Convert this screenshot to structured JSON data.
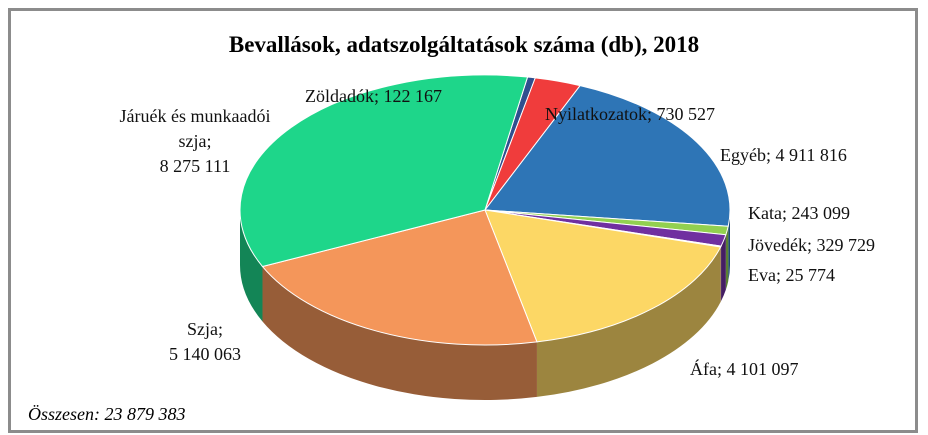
{
  "chart_data": {
    "type": "pie3d",
    "title": "Bevallások, adatszolgáltatások száma (db), 2018",
    "label_separator": ";",
    "categories": [
      "Zöldadók",
      "Nyilatkozatok",
      "Egyéb",
      "Kata",
      "Jövedék",
      "Eva",
      "Áfa",
      "Szja",
      "Járuék és munkaadói szja"
    ],
    "values": [
      122167,
      730527,
      4911816,
      243099,
      329729,
      25774,
      4101097,
      5140063,
      8275111
    ],
    "value_labels": [
      "122 167",
      "730 527",
      "4 911 816",
      "243 099",
      "329 729",
      "25 774",
      "4 101 097",
      "5 140 063",
      "8 275 111"
    ],
    "colors": [
      "#2f4f8f",
      "#f03c3c",
      "#2e75b6",
      "#92d050",
      "#7030a0",
      "#f4b6c8",
      "#fcd765",
      "#f4965a",
      "#1ed68a"
    ],
    "total_caption": "Összesen:",
    "total": 23879383,
    "total_label": "23 879 383"
  }
}
